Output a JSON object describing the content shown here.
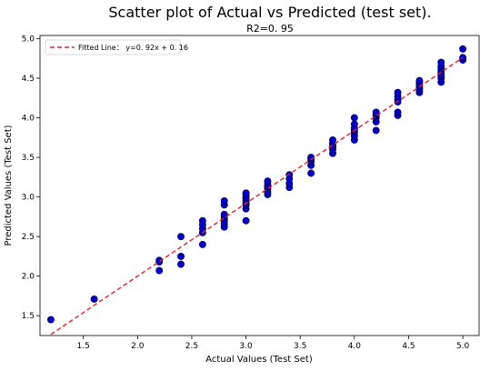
{
  "chart_data": {
    "type": "scatter",
    "title": "Scatter plot of Actual vs Predicted (test set).",
    "subtitle": "R2=0. 95",
    "xlabel": "Actual Values (Test Set)",
    "ylabel": "Predicted Values (Test Set)",
    "xlim": [
      1.1,
      5.15
    ],
    "ylim": [
      1.25,
      5.04
    ],
    "xticks": [
      1.5,
      2.0,
      2.5,
      3.0,
      3.5,
      4.0,
      4.5,
      5.0
    ],
    "xtick_labels": [
      "1.5",
      "2.0",
      "2.5",
      "3.0",
      "3.5",
      "4.0",
      "4.5",
      "5.0"
    ],
    "yticks": [
      1.5,
      2.0,
      2.5,
      3.0,
      3.5,
      4.0,
      4.5,
      5.0
    ],
    "ytick_labels": [
      "1.5",
      "2.0",
      "2.5",
      "3.0",
      "3.5",
      "4.0",
      "4.5",
      "5.0"
    ],
    "grid": false,
    "legend_position": "top-left",
    "colors": {
      "points": "#0000cc",
      "point_edge": "#000033",
      "fit_line": "#e8202a"
    },
    "fit_line": {
      "name": "Fitted Line： y=0. 92x + 0. 16",
      "slope": 0.92,
      "intercept": 0.16,
      "x_range": [
        1.2,
        5.0
      ]
    },
    "points": [
      [
        1.2,
        1.45
      ],
      [
        1.6,
        1.71
      ],
      [
        2.2,
        2.07
      ],
      [
        2.2,
        2.18
      ],
      [
        2.2,
        2.2
      ],
      [
        2.4,
        2.15
      ],
      [
        2.4,
        2.25
      ],
      [
        2.4,
        2.5
      ],
      [
        2.6,
        2.4
      ],
      [
        2.6,
        2.55
      ],
      [
        2.6,
        2.6
      ],
      [
        2.6,
        2.65
      ],
      [
        2.6,
        2.7
      ],
      [
        2.8,
        2.62
      ],
      [
        2.8,
        2.66
      ],
      [
        2.8,
        2.7
      ],
      [
        2.8,
        2.73
      ],
      [
        2.8,
        2.76
      ],
      [
        2.8,
        2.78
      ],
      [
        2.8,
        2.9
      ],
      [
        2.8,
        2.95
      ],
      [
        3.0,
        2.7
      ],
      [
        3.0,
        2.85
      ],
      [
        3.0,
        2.9
      ],
      [
        3.0,
        2.93
      ],
      [
        3.0,
        2.95
      ],
      [
        3.0,
        2.98
      ],
      [
        3.0,
        3.0
      ],
      [
        3.0,
        3.03
      ],
      [
        3.0,
        3.05
      ],
      [
        3.2,
        3.03
      ],
      [
        3.2,
        3.06
      ],
      [
        3.2,
        3.1
      ],
      [
        3.2,
        3.13
      ],
      [
        3.2,
        3.16
      ],
      [
        3.2,
        3.2
      ],
      [
        3.4,
        3.12
      ],
      [
        3.4,
        3.17
      ],
      [
        3.4,
        3.23
      ],
      [
        3.4,
        3.28
      ],
      [
        3.6,
        3.3
      ],
      [
        3.6,
        3.4
      ],
      [
        3.6,
        3.45
      ],
      [
        3.6,
        3.48
      ],
      [
        3.6,
        3.5
      ],
      [
        3.8,
        3.55
      ],
      [
        3.8,
        3.6
      ],
      [
        3.8,
        3.63
      ],
      [
        3.8,
        3.65
      ],
      [
        3.8,
        3.68
      ],
      [
        3.8,
        3.72
      ],
      [
        4.0,
        3.72
      ],
      [
        4.0,
        3.77
      ],
      [
        4.0,
        3.81
      ],
      [
        4.0,
        3.84
      ],
      [
        4.0,
        3.87
      ],
      [
        4.0,
        3.92
      ],
      [
        4.0,
        4.0
      ],
      [
        4.2,
        3.84
      ],
      [
        4.2,
        3.95
      ],
      [
        4.2,
        4.0
      ],
      [
        4.2,
        4.03
      ],
      [
        4.2,
        4.05
      ],
      [
        4.2,
        4.07
      ],
      [
        4.4,
        4.03
      ],
      [
        4.4,
        4.07
      ],
      [
        4.4,
        4.2
      ],
      [
        4.4,
        4.23
      ],
      [
        4.4,
        4.27
      ],
      [
        4.4,
        4.32
      ],
      [
        4.6,
        4.32
      ],
      [
        4.6,
        4.35
      ],
      [
        4.6,
        4.38
      ],
      [
        4.6,
        4.41
      ],
      [
        4.6,
        4.44
      ],
      [
        4.6,
        4.47
      ],
      [
        4.8,
        4.45
      ],
      [
        4.8,
        4.5
      ],
      [
        4.8,
        4.53
      ],
      [
        4.8,
        4.56
      ],
      [
        4.8,
        4.59
      ],
      [
        4.8,
        4.62
      ],
      [
        4.8,
        4.65
      ],
      [
        4.8,
        4.7
      ],
      [
        5.0,
        4.73
      ],
      [
        5.0,
        4.76
      ],
      [
        5.0,
        4.87
      ]
    ]
  }
}
